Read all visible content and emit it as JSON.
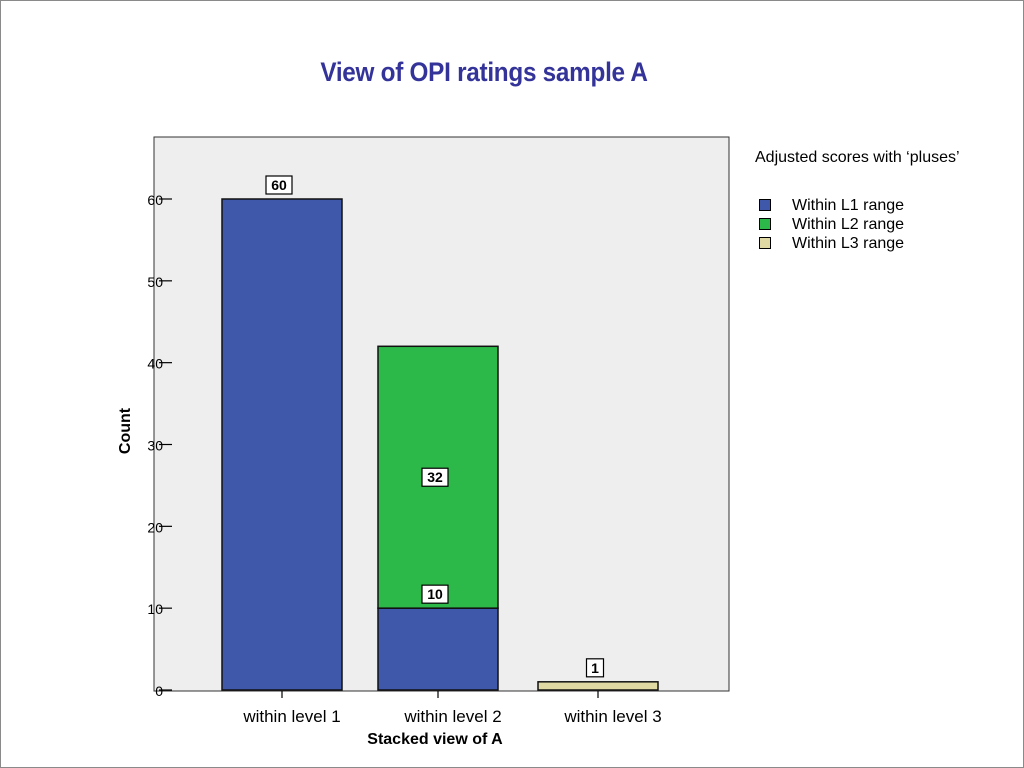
{
  "title": "View of OPI ratings sample A",
  "chart_data": {
    "type": "bar",
    "stacked": true,
    "categories": [
      "within level 1",
      "within level 2",
      "within level 3"
    ],
    "series": [
      {
        "name": "Within L1 range",
        "color": "#3f58aa",
        "values": [
          60,
          10,
          0
        ]
      },
      {
        "name": "Within L2 range",
        "color": "#2db84a",
        "values": [
          0,
          32,
          0
        ]
      },
      {
        "name": "Within L3 range",
        "color": "#e0d9a3",
        "values": [
          0,
          0,
          1
        ]
      }
    ],
    "data_labels": [
      {
        "category": "within level 1",
        "text": "60"
      },
      {
        "category": "within level 2",
        "text": "10"
      },
      {
        "category": "within level 2",
        "text": "32"
      },
      {
        "category": "within level 3",
        "text": "1"
      }
    ],
    "xlabel": "Stacked view of A",
    "ylabel": "Count",
    "ylim": [
      0,
      60
    ],
    "yticks": [
      0,
      10,
      20,
      30,
      40,
      50,
      60
    ],
    "plot_background": "#eeeeee",
    "legend": {
      "title": "Adjusted scores with ‘pluses’",
      "placement": "right"
    }
  }
}
